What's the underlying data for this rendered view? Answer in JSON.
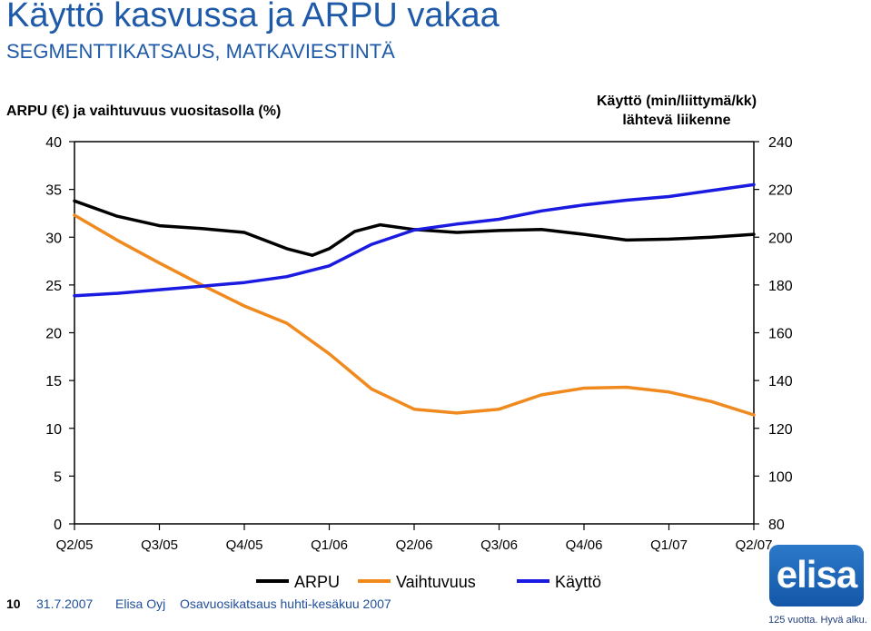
{
  "header": {
    "title": "Käyttö kasvussa ja ARPU vakaa",
    "subtitle": "SEGMENTTIKATSAUS, MATKAVIESTINTÄ"
  },
  "axis_titles": {
    "left": "ARPU (€) ja vaihtuvuus vuositasolla (%)",
    "right_line1": "Käyttö (min/liittymä/kk)",
    "right_line2": "lähtevä liikenne"
  },
  "chart_data": {
    "type": "line",
    "categories": [
      "Q2/05",
      "Q3/05",
      "Q4/05",
      "Q1/06",
      "Q2/06",
      "Q3/06",
      "Q4/06",
      "Q1/07",
      "Q2/07"
    ],
    "x_positions": [
      0,
      1,
      2,
      3,
      4,
      5,
      6,
      7,
      8
    ],
    "y_left": {
      "min": 0,
      "max": 40,
      "ticks": [
        0,
        5,
        10,
        15,
        20,
        25,
        30,
        35,
        40
      ]
    },
    "y_right": {
      "min": 80,
      "max": 240,
      "ticks": [
        80,
        100,
        120,
        140,
        160,
        180,
        200,
        220,
        240
      ]
    },
    "grid": false,
    "legend_position": "bottom",
    "series": [
      {
        "name": "ARPU",
        "axis": "left",
        "color": "#000000",
        "x": [
          0,
          0.5,
          1,
          1.5,
          2,
          2.5,
          2.8,
          3,
          3.3,
          3.6,
          4,
          4.5,
          5,
          5.5,
          6,
          6.5,
          7,
          7.5,
          8
        ],
        "y": [
          33.8,
          32.2,
          31.2,
          30.9,
          30.5,
          28.8,
          28.1,
          28.8,
          30.6,
          31.3,
          30.8,
          30.5,
          30.7,
          30.8,
          30.3,
          29.7,
          29.8,
          30.0,
          30.3
        ]
      },
      {
        "name": "Vaihtuvuus",
        "axis": "left",
        "color": "#f08a1e",
        "x": [
          0,
          0.5,
          1,
          1.5,
          2,
          2.5,
          3,
          3.5,
          4,
          4.5,
          5,
          5.5,
          6,
          6.5,
          7,
          7.5,
          8
        ],
        "y": [
          32.3,
          29.7,
          27.3,
          25.0,
          22.8,
          21.0,
          17.8,
          14.1,
          12.0,
          11.6,
          12.0,
          13.5,
          14.2,
          14.3,
          13.8,
          12.8,
          11.4
        ]
      },
      {
        "name": "Käyttö",
        "axis": "right",
        "color": "#1a1ae0",
        "x": [
          0,
          0.5,
          1,
          1.5,
          2,
          2.5,
          3,
          3.5,
          4,
          4.5,
          5,
          5.5,
          6,
          6.5,
          7,
          7.5,
          8
        ],
        "y": [
          175.5,
          176.5,
          178.0,
          179.5,
          181.0,
          183.5,
          188.0,
          197.0,
          203.0,
          205.5,
          207.5,
          211.0,
          213.5,
          215.5,
          217.0,
          219.5,
          222.0
        ]
      }
    ]
  },
  "footer": {
    "page": "10",
    "date": "31.7.2007",
    "company": "Elisa Oyj",
    "document": "Osavuosikatsaus huhti-kesäkuu 2007"
  },
  "brand": {
    "logo_text": "elisa",
    "tagline": "125 vuotta. Hyvä alku.",
    "color": "#1f5aa8"
  }
}
